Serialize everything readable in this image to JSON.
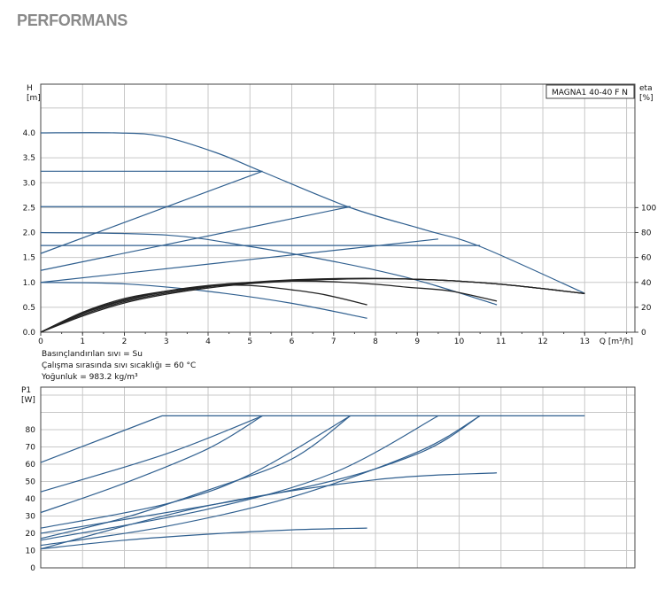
{
  "page": {
    "title": "PERFORMANS"
  },
  "notes": [
    "Basınçlandırılan sıvı = Su",
    "Çalışma sırasında sıvı sıcaklığı = 60 °C",
    "Yoğunluk = 983.2 kg/m³"
  ],
  "chart_data": [
    {
      "type": "line",
      "title": "MAGNA1 40-40 F N",
      "xlabel": "Q [m³/h]",
      "ylabel": "H\n[m]",
      "ylabel_right": "eta\n[%]",
      "xlim": [
        0,
        14.2
      ],
      "ylim": [
        0,
        5
      ],
      "x_ticks": [
        0,
        1,
        2,
        3,
        4,
        5,
        6,
        7,
        8,
        9,
        10,
        11,
        12,
        13
      ],
      "y_ticks": [
        "0.0",
        "0.5",
        "1.0",
        "1.5",
        "2.0",
        "2.5",
        "3.0",
        "3.5",
        "4.0"
      ],
      "y2_ticks": [
        0,
        20,
        40,
        60,
        80,
        100
      ],
      "y2_lim_at_H": {
        "eta_0": 0.0,
        "eta_100": 2.5
      },
      "grid": true,
      "series": [
        {
          "kind": "head",
          "x": [
            0,
            1.8,
            2.9,
            4.2,
            5.3,
            7.4,
            9.2,
            10.5,
            13
          ],
          "y": [
            4.0,
            4.0,
            3.93,
            3.6,
            3.22,
            2.5,
            2.05,
            1.72,
            0.78
          ]
        },
        {
          "kind": "head",
          "x": [
            0,
            5.3
          ],
          "y": [
            3.23,
            3.23
          ]
        },
        {
          "kind": "head",
          "x": [
            0,
            7.4
          ],
          "y": [
            2.52,
            2.52
          ]
        },
        {
          "kind": "head",
          "x": [
            0,
            10.5
          ],
          "y": [
            1.74,
            1.74
          ]
        },
        {
          "kind": "head",
          "x": [
            0,
            3,
            5,
            7,
            8.5,
            9.5,
            10.9
          ],
          "y": [
            2.0,
            1.95,
            1.72,
            1.42,
            1.15,
            0.92,
            0.55
          ]
        },
        {
          "kind": "head",
          "x": [
            0,
            2,
            4,
            6,
            7.8
          ],
          "y": [
            1.0,
            0.97,
            0.82,
            0.58,
            0.28
          ]
        },
        {
          "kind": "system",
          "x": [
            0,
            5.3
          ],
          "y": [
            1.58,
            3.23
          ]
        },
        {
          "kind": "system",
          "x": [
            0,
            7.4
          ],
          "y": [
            1.24,
            2.52
          ]
        },
        {
          "kind": "system",
          "x": [
            0,
            9.5
          ],
          "y": [
            1.0,
            1.87
          ]
        },
        {
          "kind": "eta",
          "x": [
            0,
            1,
            2,
            3,
            4,
            5,
            6,
            6.8,
            7.8
          ],
          "y": [
            0,
            16,
            27,
            33,
            37,
            37.5,
            34,
            30,
            22
          ]
        },
        {
          "kind": "eta",
          "x": [
            0,
            1,
            2,
            3,
            4,
            5,
            6,
            7,
            8,
            8.8,
            9.8,
            10.9
          ],
          "y": [
            0,
            15.5,
            26,
            33,
            37.5,
            40,
            41,
            40.5,
            38.5,
            36,
            33,
            25
          ]
        },
        {
          "kind": "eta",
          "x": [
            0,
            1,
            2,
            3,
            4,
            5,
            6,
            7,
            8,
            9,
            10,
            11,
            12,
            13
          ],
          "y": [
            0,
            15,
            25.5,
            32.5,
            37,
            40,
            42,
            43,
            43.2,
            42.5,
            41,
            38.5,
            35,
            31
          ]
        },
        {
          "kind": "eta",
          "x": [
            0,
            1,
            2,
            3,
            4,
            5,
            6,
            7,
            8,
            9,
            10,
            11,
            12,
            13
          ],
          "y": [
            0,
            14,
            24.5,
            31.5,
            36.5,
            39.5,
            41.5,
            42.5,
            43,
            42.5,
            41,
            38.5,
            35,
            31
          ]
        },
        {
          "kind": "eta",
          "x": [
            0,
            1,
            2,
            3,
            4,
            5,
            6,
            7,
            8,
            9,
            10,
            11,
            12,
            13
          ],
          "y": [
            0,
            13,
            23.5,
            30.5,
            35.5,
            39,
            41,
            42.5,
            43,
            42.5,
            41,
            38.5,
            35,
            31
          ]
        }
      ]
    },
    {
      "type": "line",
      "title": "",
      "xlabel": "",
      "ylabel": "P1\n[W]",
      "xlim": [
        0,
        14.2
      ],
      "ylim": [
        0,
        90
      ],
      "y_ticks": [
        0,
        10,
        20,
        30,
        40,
        50,
        60,
        70,
        80
      ],
      "grid": true,
      "series": [
        {
          "x": [
            0,
            2.9,
            13
          ],
          "y": [
            61,
            88,
            88
          ]
        },
        {
          "x": [
            0,
            3,
            5.3
          ],
          "y": [
            44,
            66,
            88
          ]
        },
        {
          "x": [
            0,
            2,
            4,
            5.3
          ],
          "y": [
            32,
            49,
            69,
            88
          ]
        },
        {
          "x": [
            0,
            3,
            5,
            7.4
          ],
          "y": [
            23,
            37,
            54,
            88
          ]
        },
        {
          "x": [
            0,
            2,
            4,
            6,
            7.4
          ],
          "y": [
            17,
            29,
            45,
            63,
            88
          ]
        },
        {
          "x": [
            0,
            4,
            7,
            9.5
          ],
          "y": [
            16,
            34,
            55,
            88
          ]
        },
        {
          "x": [
            0,
            3,
            6,
            9,
            10.5
          ],
          "y": [
            13,
            24,
            41,
            67,
            88
          ]
        },
        {
          "x": [
            0,
            4,
            8,
            10.9
          ],
          "y": [
            11,
            36,
            51,
            55
          ]
        },
        {
          "x": [
            0,
            2,
            4,
            6,
            7.8
          ],
          "y": [
            11,
            16,
            19.5,
            22,
            23
          ]
        },
        {
          "x": [
            0,
            6,
            9,
            10.5
          ],
          "y": [
            20,
            45,
            66,
            88
          ]
        }
      ]
    }
  ]
}
